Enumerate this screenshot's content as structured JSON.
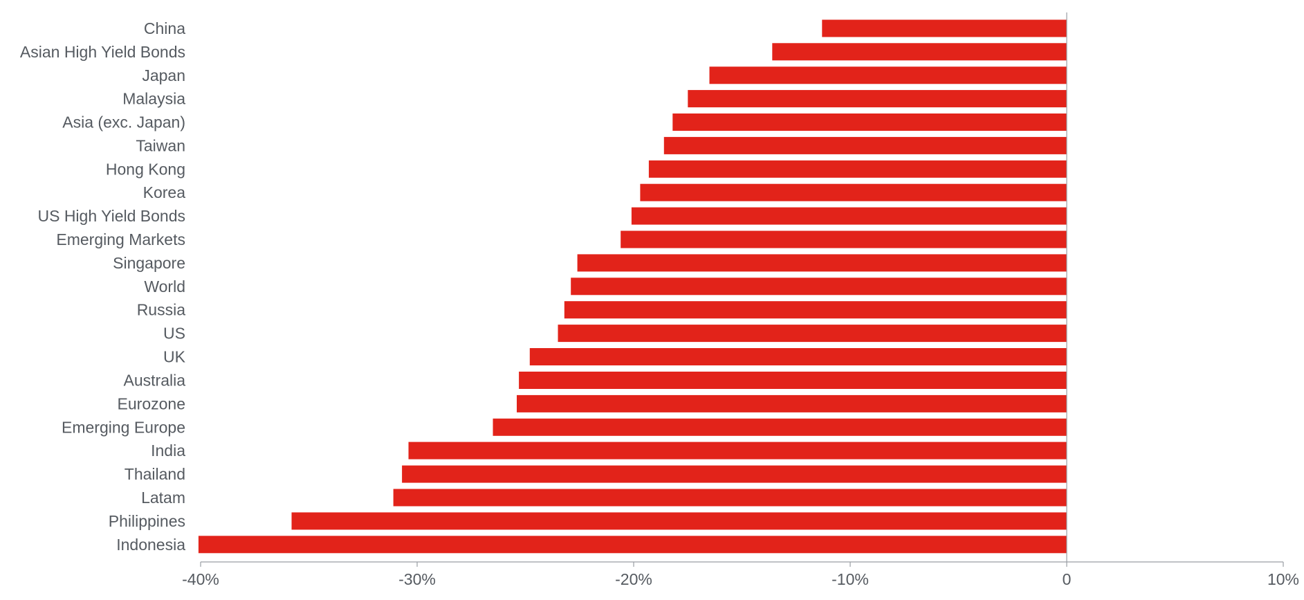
{
  "chart_data": {
    "type": "bar",
    "orientation": "horizontal",
    "categories": [
      "China",
      "Asian High Yield Bonds",
      "Japan",
      "Malaysia",
      "Asia (exc. Japan)",
      "Taiwan",
      "Hong Kong",
      "Korea",
      "US High Yield Bonds",
      "Emerging Markets",
      "Singapore",
      "World",
      "Russia",
      "US",
      "UK",
      "Australia",
      "Eurozone",
      "Emerging Europe",
      "India",
      "Thailand",
      "Latam",
      "Philippines",
      "Indonesia"
    ],
    "values": [
      -11.3,
      -13.6,
      -16.5,
      -17.5,
      -18.2,
      -18.6,
      -19.3,
      -19.7,
      -20.1,
      -20.6,
      -22.6,
      -22.9,
      -23.2,
      -23.5,
      -24.8,
      -25.3,
      -25.4,
      -26.5,
      -30.4,
      -30.7,
      -31.1,
      -35.8,
      -40.1
    ],
    "xlim": [
      -40,
      10
    ],
    "xticks": [
      -40,
      -30,
      -20,
      -10,
      0,
      10
    ],
    "xtick_labels": [
      "-40%",
      "-30%",
      "-20%",
      "-10%",
      "0",
      "10%"
    ],
    "bar_color": "#e2231a",
    "title": "",
    "xlabel": "",
    "ylabel": "",
    "grid": false,
    "legend": "none"
  }
}
